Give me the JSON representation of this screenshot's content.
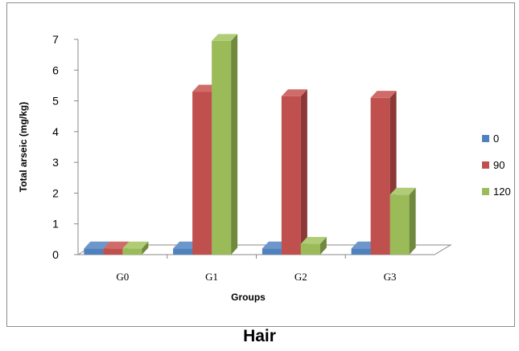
{
  "caption": "Hair",
  "chart_data": {
    "type": "bar",
    "style": "3d-clustered-column",
    "categories": [
      "G0",
      "G1",
      "G2",
      "G3"
    ],
    "series": [
      {
        "name": "0",
        "values": [
          0.2,
          0.2,
          0.2,
          0.2
        ],
        "color": "#4f81bd",
        "side_color": "#385d8a",
        "top_color": "#6d97cb"
      },
      {
        "name": "90",
        "values": [
          0.2,
          5.3,
          5.15,
          5.1
        ],
        "color": "#c0504d",
        "side_color": "#8c3836",
        "top_color": "#cf6c69"
      },
      {
        "name": "120",
        "values": [
          0.2,
          6.95,
          0.35,
          1.95
        ],
        "color": "#9bbb59",
        "side_color": "#71893f",
        "top_color": "#b0cc76"
      }
    ],
    "xlabel": "Groups",
    "ylabel": "Total arseic (mg/kg)",
    "ylim": [
      0,
      7
    ],
    "yticks": [
      "0",
      "1",
      "2",
      "3",
      "4",
      "5",
      "6",
      "7"
    ],
    "legend_position": "right",
    "grid": false
  }
}
